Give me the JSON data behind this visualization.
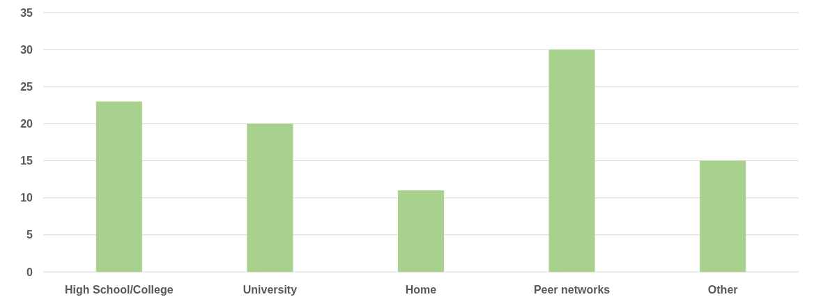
{
  "chart_data": {
    "type": "bar",
    "categories": [
      "High School/College",
      "University",
      "Home",
      "Peer networks",
      "Other"
    ],
    "values": [
      23,
      20,
      11,
      30,
      15
    ],
    "color": "#a9d18e",
    "ylim": [
      0,
      35
    ],
    "yticks": [
      0,
      5,
      10,
      15,
      20,
      25,
      30,
      35
    ],
    "grid": "y"
  }
}
